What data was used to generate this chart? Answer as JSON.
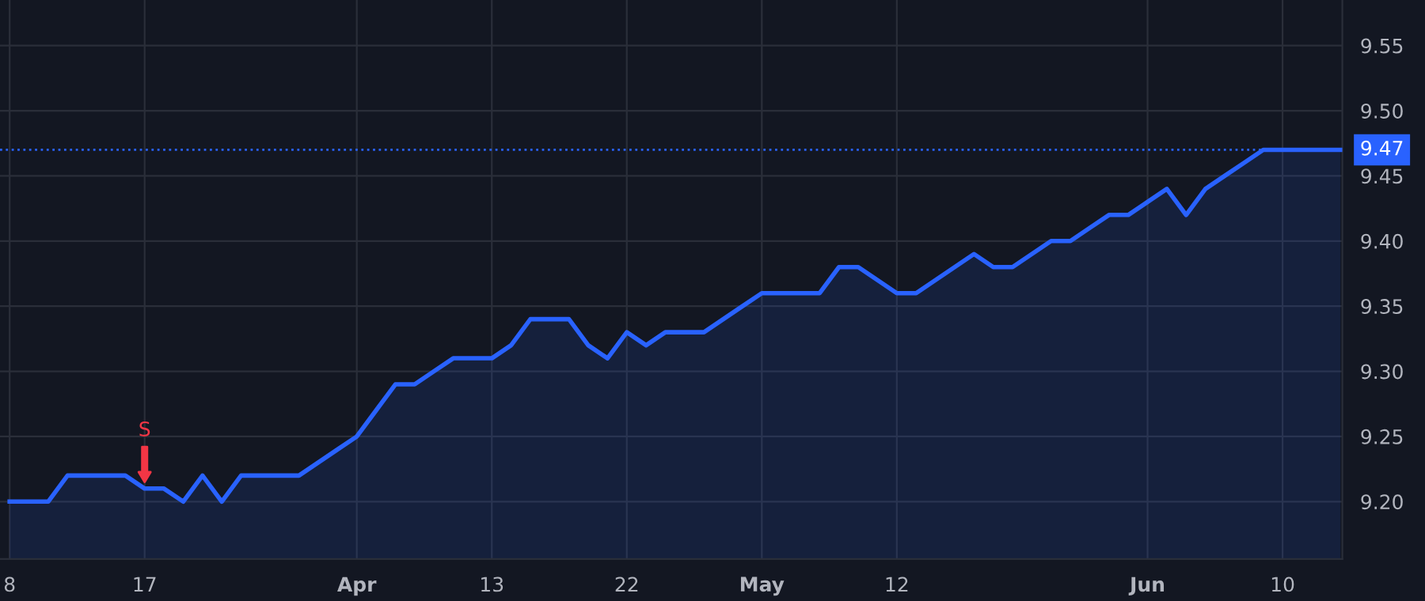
{
  "chart_data": {
    "type": "area",
    "categories": [
      "8",
      null,
      null,
      null,
      null,
      null,
      null,
      "17",
      null,
      null,
      null,
      null,
      null,
      null,
      null,
      null,
      null,
      null,
      "Apr",
      null,
      null,
      null,
      null,
      null,
      null,
      "13",
      null,
      null,
      null,
      null,
      null,
      null,
      "22",
      null,
      null,
      null,
      null,
      null,
      null,
      "May",
      null,
      null,
      null,
      null,
      null,
      null,
      "12",
      null,
      null,
      null,
      null,
      null,
      null,
      null,
      null,
      null,
      null,
      null,
      null,
      "Jun",
      null,
      null,
      null,
      null,
      null,
      null,
      "10",
      null,
      null,
      null
    ],
    "series": [
      {
        "color": "#2962ff",
        "values": [
          9.2,
          9.2,
          9.2,
          9.22,
          9.22,
          9.22,
          9.22,
          9.21,
          9.21,
          9.2,
          9.22,
          9.2,
          9.22,
          9.22,
          9.22,
          9.22,
          9.23,
          9.24,
          9.25,
          9.27,
          9.29,
          9.29,
          9.3,
          9.31,
          9.31,
          9.31,
          9.32,
          9.34,
          9.34,
          9.34,
          9.32,
          9.31,
          9.33,
          9.32,
          9.33,
          9.33,
          9.33,
          9.34,
          9.35,
          9.36,
          9.36,
          9.36,
          9.36,
          9.38,
          9.38,
          9.37,
          9.36,
          9.36,
          9.37,
          9.38,
          9.39,
          9.38,
          9.38,
          9.39,
          9.4,
          9.4,
          9.41,
          9.42,
          9.42,
          9.43,
          9.44,
          9.42,
          9.44,
          9.45,
          9.46,
          9.47,
          9.47,
          9.47,
          9.47,
          9.47
        ]
      }
    ],
    "ylim": [
      9.156,
      9.585
    ],
    "yticks": [
      {
        "value": 9.2,
        "label": "9.20"
      },
      {
        "value": 9.25,
        "label": "9.25"
      },
      {
        "value": 9.3,
        "label": "9.30"
      },
      {
        "value": 9.35,
        "label": "9.35"
      },
      {
        "value": 9.4,
        "label": "9.40"
      },
      {
        "value": 9.45,
        "label": "9.45"
      },
      {
        "value": 9.5,
        "label": "9.50"
      },
      {
        "value": 9.55,
        "label": "9.55"
      }
    ],
    "ref_lines": [
      {
        "axis": "y",
        "value": 9.47,
        "label": "9.47",
        "color": "#2962ff",
        "line_style": "dotted"
      }
    ],
    "annotations": [
      {
        "text": "S",
        "x": "17",
        "y": 9.21
      }
    ],
    "grid": true
  }
}
